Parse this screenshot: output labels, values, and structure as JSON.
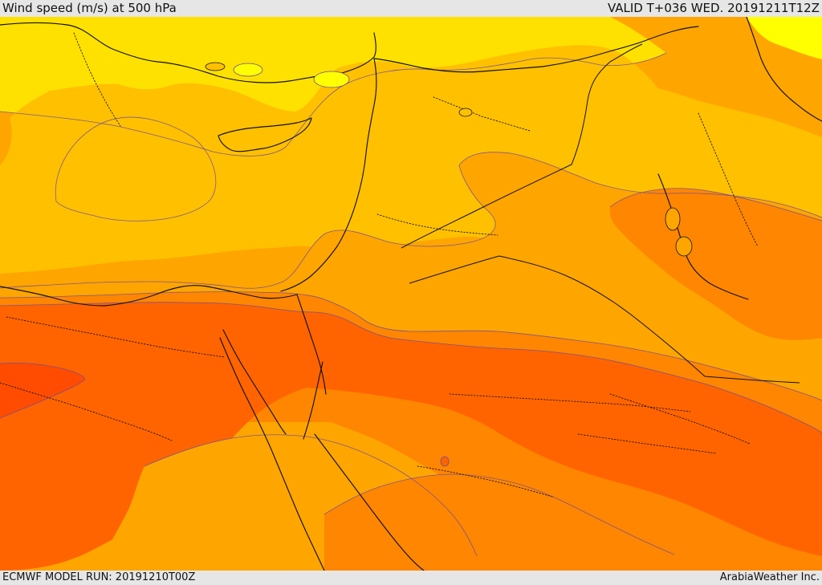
{
  "header": {
    "title": "Wind speed (m/s) at 500 hPa",
    "valid_time": "VALID T+036 WED. 20191211T12Z"
  },
  "footer": {
    "model_run": "ECMWF MODEL RUN: 20191210T00Z",
    "provider": "ArabiaWeather Inc."
  },
  "map": {
    "colors": {
      "level_1": "#ffff00",
      "level_2": "#ffe100",
      "level_3": "#ffc000",
      "level_4": "#ffa500",
      "level_5": "#ff8600",
      "level_6": "#ff6400",
      "level_7": "#ff4c00",
      "contour": "#6b4aa0"
    }
  }
}
